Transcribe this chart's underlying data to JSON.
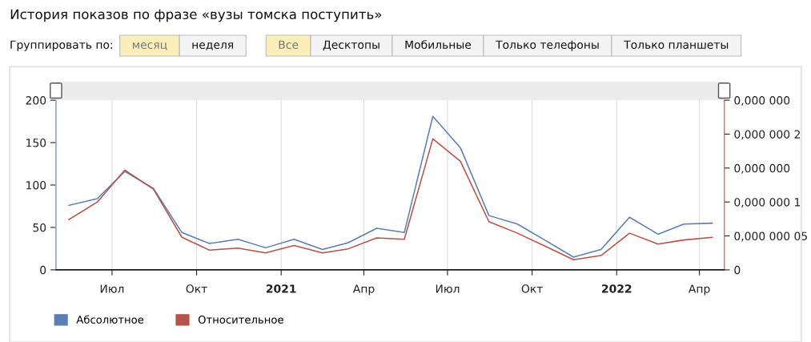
{
  "chart_data": {
    "type": "line",
    "title": "История показов по фразе «вузы томска поступить»",
    "annotations": [
      "Группировать по:",
      "месяц",
      "неделя",
      "Все",
      "Десктопы",
      "Мобильные",
      "Только телефоны",
      "Только планшеты"
    ],
    "x": [
      "2020-05-15",
      "2020-06-15",
      "2020-07-15",
      "2020-08-15",
      "2020-09-15",
      "2020-10-15",
      "2020-11-15",
      "2020-12-15",
      "2021-01-15",
      "2021-02-15",
      "2021-03-15",
      "2021-04-15",
      "2021-05-15",
      "2021-06-15",
      "2021-07-15",
      "2021-08-15",
      "2021-09-15",
      "2021-10-15",
      "2021-11-15",
      "2021-12-15",
      "2022-01-15",
      "2022-02-15",
      "2022-03-15",
      "2022-04-15"
    ],
    "series": [
      {
        "name": "Абсолютное",
        "color": "#5b7fb5",
        "values": [
          76,
          84,
          116,
          96,
          44,
          31,
          36,
          26,
          36,
          24,
          32,
          49,
          44,
          181,
          144,
          64,
          54,
          35,
          15,
          24,
          62,
          42,
          54,
          55
        ]
      },
      {
        "name": "Относительное",
        "color": "#b5524a",
        "axis": "y2",
        "values": [
          7.4e-08,
          1e-07,
          1.47e-07,
          1.19e-07,
          4.8e-08,
          2.9e-08,
          3.2e-08,
          2.5e-08,
          3.6e-08,
          2.5e-08,
          3.1e-08,
          4.7e-08,
          4.5e-08,
          1.93e-07,
          1.6e-07,
          7.1e-08,
          5.4e-08,
          3.5e-08,
          1.5e-08,
          2.1e-08,
          5.4e-08,
          3.8e-08,
          4.4e-08,
          4.8e-08
        ]
      }
    ],
    "xlim": [
      "2020-05-01",
      "2022-04-28"
    ],
    "xticks": [
      {
        "value": "2020-07-01",
        "label": "Июл"
      },
      {
        "value": "2020-10-01",
        "label": "Окт"
      },
      {
        "value": "2021-01-01",
        "label": "2021"
      },
      {
        "value": "2021-04-01",
        "label": "Апр"
      },
      {
        "value": "2021-07-01",
        "label": "Июл"
      },
      {
        "value": "2021-10-01",
        "label": "Окт"
      },
      {
        "value": "2022-01-01",
        "label": "2022"
      },
      {
        "value": "2022-04-01",
        "label": "Апр"
      }
    ],
    "ylim": [
      0,
      200
    ],
    "yticks": [
      0,
      50,
      100,
      150,
      200
    ],
    "y2lim": [
      0,
      2.5e-07
    ],
    "y2ticks": [
      0,
      {
        "value": 5e-08,
        "label": "0,000 000 05"
      },
      {
        "value": 1e-07,
        "label": "0,000 000 1"
      },
      {
        "value": 1.5e-07,
        "label": "0,000 000"
      },
      {
        "value": 2e-07,
        "label": "0,000 000 2"
      },
      {
        "value": 2.5e-07,
        "label": "0,000 000"
      }
    ],
    "grid": "x",
    "legend": "bottom left",
    "marker": "none",
    "line_style": "solid"
  }
}
